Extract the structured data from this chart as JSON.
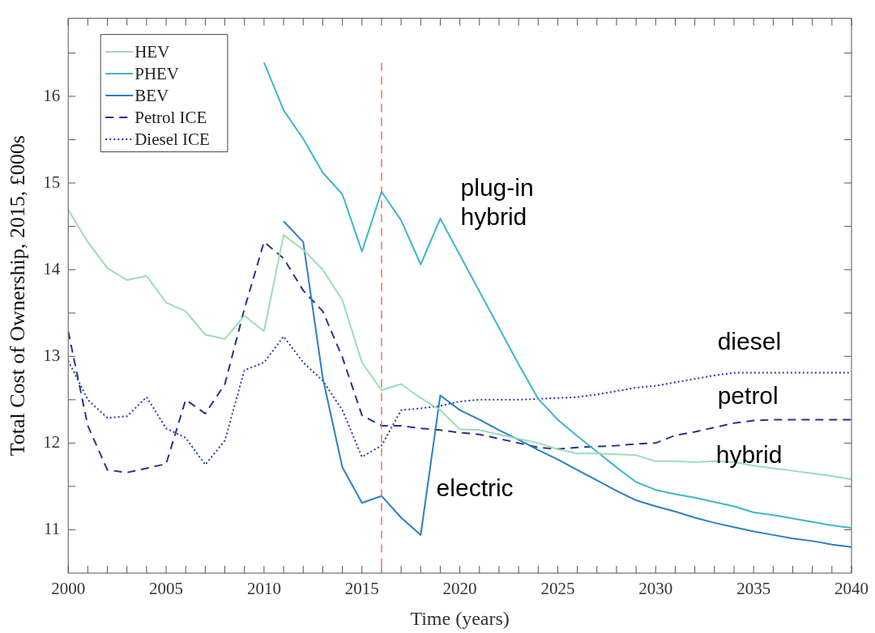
{
  "chart_data": {
    "type": "line",
    "xlabel": "Time (years)",
    "ylabel": "Total Cost of Ownership, 2015, £000s",
    "x": [
      2000,
      2001,
      2002,
      2003,
      2004,
      2005,
      2006,
      2007,
      2008,
      2009,
      2010,
      2011,
      2012,
      2013,
      2014,
      2015,
      2016,
      2017,
      2018,
      2019,
      2020,
      2021,
      2022,
      2023,
      2024,
      2025,
      2026,
      2027,
      2028,
      2029,
      2030,
      2031,
      2032,
      2033,
      2034,
      2035,
      2036,
      2037,
      2038,
      2039,
      2040
    ],
    "series": [
      {
        "name": "HEV",
        "color": "#9ddcb8",
        "line_style": "solid",
        "values": [
          14.69,
          14.32,
          14.02,
          13.88,
          13.93,
          13.62,
          13.52,
          13.25,
          13.2,
          13.47,
          13.29,
          14.4,
          14.23,
          14.0,
          13.65,
          12.93,
          12.61,
          12.68,
          12.52,
          12.38,
          12.16,
          12.15,
          12.1,
          12.05,
          12.0,
          11.93,
          11.88,
          11.88,
          11.87,
          11.86,
          11.79,
          11.79,
          11.78,
          11.79,
          11.78,
          11.74,
          11.71,
          11.68,
          11.65,
          11.62,
          11.58
        ]
      },
      {
        "name": "PHEV",
        "color": "#3cb9c9",
        "line_style": "solid",
        "values": [
          null,
          null,
          null,
          null,
          null,
          null,
          null,
          null,
          null,
          null,
          16.39,
          15.84,
          15.51,
          15.12,
          14.87,
          14.21,
          14.9,
          14.57,
          14.06,
          14.59,
          14.17,
          13.75,
          13.33,
          12.91,
          12.51,
          12.27,
          12.08,
          11.9,
          11.72,
          11.55,
          11.46,
          11.41,
          11.37,
          11.32,
          11.27,
          11.2,
          11.17,
          11.13,
          11.09,
          11.05,
          11.02
        ]
      },
      {
        "name": "BEV",
        "color": "#2b80c2",
        "line_style": "solid",
        "values": [
          null,
          null,
          null,
          null,
          null,
          null,
          null,
          null,
          null,
          null,
          null,
          14.56,
          14.32,
          12.75,
          11.72,
          11.31,
          11.39,
          11.14,
          10.94,
          12.55,
          12.38,
          12.27,
          12.15,
          12.04,
          11.92,
          11.81,
          11.69,
          11.57,
          11.45,
          11.34,
          11.27,
          11.21,
          11.14,
          11.08,
          11.03,
          10.98,
          10.94,
          10.9,
          10.87,
          10.83,
          10.8
        ]
      },
      {
        "name": "Petrol ICE",
        "color": "#27338f",
        "line_style": "dashed",
        "values": [
          13.29,
          12.2,
          11.69,
          11.66,
          11.71,
          11.76,
          12.5,
          12.34,
          12.68,
          13.55,
          14.32,
          14.13,
          13.76,
          13.52,
          12.99,
          12.32,
          12.2,
          12.2,
          12.17,
          12.15,
          12.12,
          12.1,
          12.05,
          12.0,
          11.95,
          11.93,
          11.95,
          11.96,
          11.97,
          11.99,
          12.0,
          12.09,
          12.13,
          12.18,
          12.23,
          12.26,
          12.27,
          12.27,
          12.27,
          12.27,
          12.27
        ]
      },
      {
        "name": "Diesel ICE",
        "color": "#2a3aa8",
        "line_style": "dotted",
        "values": [
          12.95,
          12.5,
          12.29,
          12.31,
          12.53,
          12.17,
          12.06,
          11.75,
          12.03,
          12.84,
          12.93,
          13.23,
          12.93,
          12.72,
          12.38,
          11.84,
          11.97,
          12.38,
          12.4,
          12.43,
          12.48,
          12.5,
          12.5,
          12.5,
          12.51,
          12.52,
          12.53,
          12.56,
          12.6,
          12.64,
          12.66,
          12.7,
          12.74,
          12.78,
          12.81,
          12.81,
          12.81,
          12.81,
          12.81,
          12.81,
          12.81
        ]
      }
    ],
    "xlim": [
      2000,
      2040
    ],
    "xticks": [
      2000,
      {
        "value": 2001,
        "label": null
      },
      {
        "value": 2002,
        "label": null
      },
      {
        "value": 2003,
        "label": null
      },
      {
        "value": 2004,
        "label": null
      },
      2005,
      {
        "value": 2006,
        "label": null
      },
      {
        "value": 2007,
        "label": null
      },
      {
        "value": 2008,
        "label": null
      },
      {
        "value": 2009,
        "label": null
      },
      2010,
      {
        "value": 2011,
        "label": null
      },
      {
        "value": 2012,
        "label": null
      },
      {
        "value": 2013,
        "label": null
      },
      {
        "value": 2014,
        "label": null
      },
      2015,
      {
        "value": 2016,
        "label": null
      },
      {
        "value": 2017,
        "label": null
      },
      {
        "value": 2018,
        "label": null
      },
      {
        "value": 2019,
        "label": null
      },
      2020,
      {
        "value": 2021,
        "label": null
      },
      {
        "value": 2022,
        "label": null
      },
      {
        "value": 2023,
        "label": null
      },
      {
        "value": 2024,
        "label": null
      },
      2025,
      {
        "value": 2026,
        "label": null
      },
      {
        "value": 2027,
        "label": null
      },
      {
        "value": 2028,
        "label": null
      },
      {
        "value": 2029,
        "label": null
      },
      2030,
      {
        "value": 2031,
        "label": null
      },
      {
        "value": 2032,
        "label": null
      },
      {
        "value": 2033,
        "label": null
      },
      {
        "value": 2034,
        "label": null
      },
      2035,
      {
        "value": 2036,
        "label": null
      },
      {
        "value": 2037,
        "label": null
      },
      {
        "value": 2038,
        "label": null
      },
      {
        "value": 2039,
        "label": null
      },
      2040
    ],
    "ylim": [
      10.5,
      16.9
    ],
    "yticks": [
      11,
      {
        "value": 11.5,
        "label": null
      },
      12,
      {
        "value": 12.5,
        "label": null
      },
      13,
      {
        "value": 13.5,
        "label": null
      },
      14,
      {
        "value": 14.5,
        "label": null
      },
      15,
      {
        "value": 15.5,
        "label": null
      },
      16,
      {
        "value": 16.5,
        "label": null
      }
    ],
    "ref_lines": [
      {
        "axis": "x",
        "value": 2016,
        "color": "#f0705e",
        "line_style": "dashed"
      }
    ],
    "annotations": [
      "plug-in\nhybrid",
      "diesel",
      "petrol",
      "hybrid",
      "electric"
    ],
    "legend": "top left",
    "grid": false,
    "marker": "none"
  }
}
